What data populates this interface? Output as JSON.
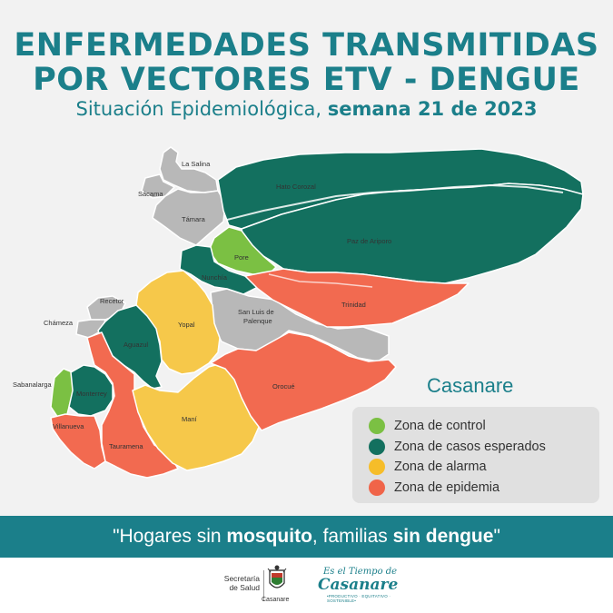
{
  "header": {
    "title_line1": "ENFERMEDADES TRANSMITIDAS",
    "title_line2": "POR VECTORES ETV - DENGUE",
    "subtitle_normal": "Situación Epidemiológica, ",
    "subtitle_bold": "semana 21 de 2023"
  },
  "map": {
    "region_name": "Casanare",
    "outside_labels": {
      "la_salina": "La Salina",
      "sacama": "Sácama",
      "recetor": "Recetor",
      "chameza": "Chámeza",
      "sabanalarga": "Sabanalarga"
    },
    "municipalities": {
      "la_salina": {
        "name": "La Salina",
        "zone": "gray"
      },
      "sacama": {
        "name": "Sácama",
        "zone": "gray"
      },
      "tamara": {
        "name": "Támara",
        "zone": "gray"
      },
      "hato_corozal": {
        "name": "Hato Corozal",
        "zone": "esperados"
      },
      "paz_de_ariporo": {
        "name": "Paz de Ariporo",
        "zone": "esperados"
      },
      "pore": {
        "name": "Pore",
        "zone": "control"
      },
      "nunchia": {
        "name": "Nunchía",
        "zone": "esperados"
      },
      "trinidad": {
        "name": "Trinidad",
        "zone": "epidemia"
      },
      "san_luis_de_palenque": {
        "name": "San Luis de\nPalenque",
        "zone": "gray"
      },
      "yopal": {
        "name": "Yopal",
        "zone": "alarma"
      },
      "recetor": {
        "name": "Recetor",
        "zone": "gray"
      },
      "chameza": {
        "name": "Chámeza",
        "zone": "gray"
      },
      "aguazul": {
        "name": "Aguazul",
        "zone": "esperados"
      },
      "sabanalarga": {
        "name": "Sabanalarga",
        "zone": "control"
      },
      "monterrey": {
        "name": "Monterrey",
        "zone": "esperados"
      },
      "villanueva": {
        "name": "Villanueva",
        "zone": "epidemia"
      },
      "tauramena": {
        "name": "Tauramena",
        "zone": "epidemia"
      },
      "mani": {
        "name": "Maní",
        "zone": "alarma"
      },
      "orocue": {
        "name": "Orocué",
        "zone": "epidemia"
      }
    },
    "labels": {
      "hato_corozal": "Hato Corozal",
      "paz_de_ariporo": "Paz de Ariporo",
      "tamara": "Támara",
      "pore": "Pore",
      "nunchia": "Nunchía",
      "trinidad": "Trinidad",
      "slp_line1": "San Luis de",
      "slp_line2": "Palenque",
      "yopal": "Yopal",
      "aguazul": "Aguazul",
      "monterrey": "Monterrey",
      "villanueva": "Villanueva",
      "tauramena": "Tauramena",
      "mani": "Maní",
      "orocue": "Orocué"
    }
  },
  "legend": {
    "items": [
      {
        "label": "Zona de control",
        "color": "#7bc043"
      },
      {
        "label": "Zona de casos esperados",
        "color": "#13705f"
      },
      {
        "label": "Zona de alarma",
        "color": "#f6bd29"
      },
      {
        "label": "Zona de epidemia",
        "color": "#f06449"
      }
    ]
  },
  "colors": {
    "control": "#7bc043",
    "esperados": "#13705f",
    "alarma": "#f6c84a",
    "epidemia": "#f26a50",
    "gray": "#b8b8b8",
    "accent": "#1b7f8a"
  },
  "banner": {
    "q_open": "\"Hogares sin ",
    "bold1": "mosquito",
    "mid": ", familias ",
    "bold2": "sin dengue",
    "q_close": "\""
  },
  "footer": {
    "secretaria_line1": "Secretaría",
    "secretaria_line2": "de Salud",
    "seal_text": "Casanare",
    "logo_top": "Es el Tiempo de",
    "logo_main": "Casanare",
    "logo_sub": "•PRODUCTIVO · EQUITATIVO · SOSTENIBLE•"
  }
}
